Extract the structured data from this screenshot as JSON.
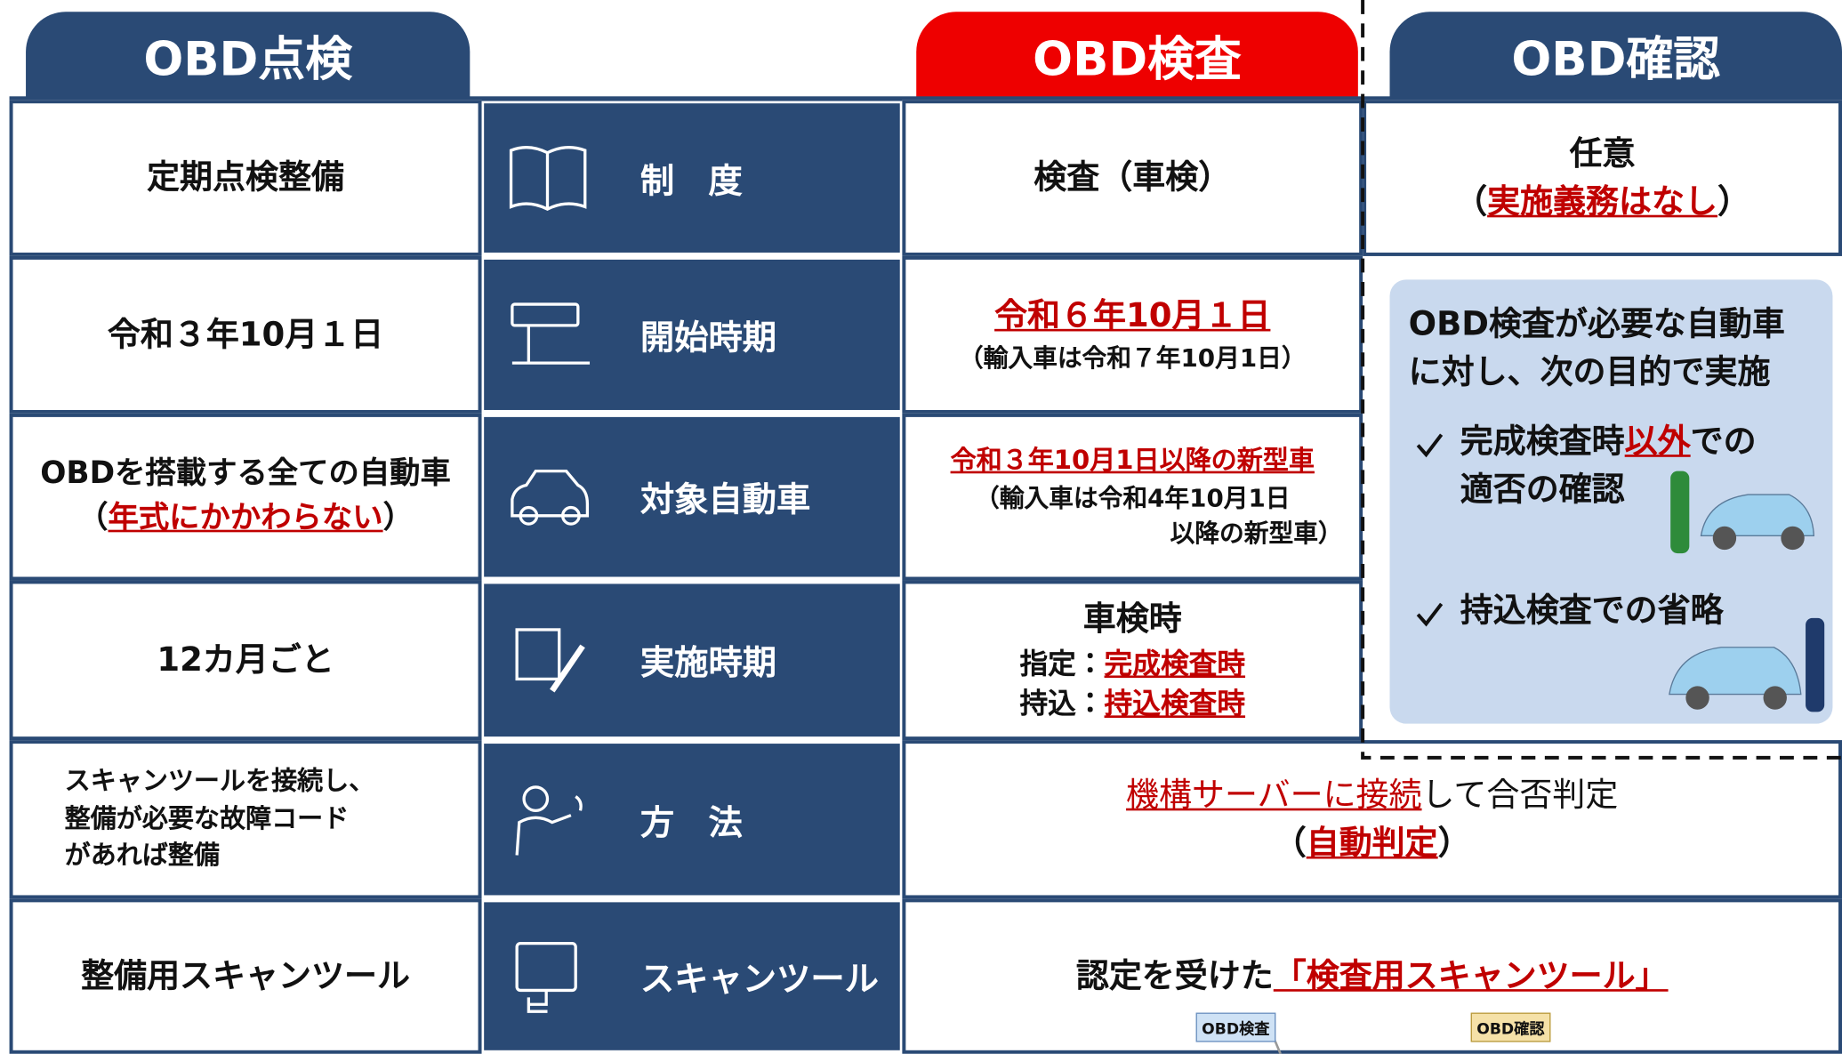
{
  "headers": {
    "tenken": "OBD点検",
    "kensa": "OBD検査",
    "kakunin": "OBD確認"
  },
  "rows": [
    {
      "label": "制　度",
      "tenken": [
        [
          {
            "text": "定期点検整備"
          }
        ]
      ],
      "kensa": [
        [
          {
            "text": "検査（車検）"
          }
        ]
      ],
      "kakunin": [
        [
          {
            "text": "任意"
          }
        ],
        [
          {
            "text": "（"
          },
          {
            "text": "実施義務はなし",
            "red": true
          },
          {
            "text": "）"
          }
        ]
      ]
    },
    {
      "label": "開始時期",
      "tenken": [
        [
          {
            "text": "令和３年10月１日"
          }
        ]
      ],
      "kensa": [
        [
          {
            "text": "令和６年10月１日",
            "red": true
          }
        ],
        [
          {
            "text": "（輸入車は令和７年10月1日）"
          }
        ]
      ]
    },
    {
      "label": "対象自動車",
      "tenken": [
        [
          {
            "text": "OBDを搭載する全ての自動車"
          }
        ],
        [
          {
            "text": "（"
          },
          {
            "text": "年式にかかわらない",
            "red": true
          },
          {
            "text": "）"
          }
        ]
      ],
      "kensa": [
        [
          {
            "text": "令和３年10月1日以降の新型車",
            "red": true
          }
        ],
        [
          {
            "text": "（輸入車は令和4年10月1日"
          }
        ],
        [
          {
            "text": "以降の新型車）"
          }
        ]
      ]
    },
    {
      "label": "実施時期",
      "tenken": [
        [
          {
            "text": "12カ月ごと"
          }
        ]
      ],
      "kensa": [
        [
          {
            "text": "車検時"
          }
        ],
        [
          {
            "text": "指定："
          },
          {
            "text": "完成検査時",
            "red": true
          }
        ],
        [
          {
            "text": "持込："
          },
          {
            "text": "持込検査時",
            "red": true
          }
        ]
      ]
    },
    {
      "label": "方　法",
      "tenken": [
        [
          {
            "text": "スキャンツールを接続し、"
          }
        ],
        [
          {
            "text": "整備が必要な故障コード"
          }
        ],
        [
          {
            "text": "があれば整備"
          }
        ]
      ],
      "kensa_kakunin": [
        [
          {
            "text": "機構サーバーに接続",
            "red": true
          },
          {
            "text": "して合否判定"
          }
        ],
        [
          {
            "text": "（"
          },
          {
            "text": "自動判定",
            "red": true
          },
          {
            "text": "）"
          }
        ]
      ]
    },
    {
      "label": "スキャンツール",
      "tenken": [
        [
          {
            "text": "整備用スキャンツール"
          }
        ]
      ],
      "kensa_kakunin": [
        [
          {
            "text": "認定を受けた"
          },
          {
            "text": "「検査用スキャンツール」",
            "red": true
          }
        ]
      ]
    }
  ],
  "kakunin_box": {
    "intro": [
      [
        {
          "text": "OBD検査が必要な自動車"
        }
      ],
      [
        {
          "text": "に対し、次の目的で実施"
        }
      ]
    ],
    "items": [
      [
        [
          {
            "text": "完成検査時"
          },
          {
            "text": "以外",
            "red": true
          },
          {
            "text": "での"
          }
        ],
        [
          {
            "text": "適否の確認"
          }
        ]
      ],
      [
        [
          {
            "text": "持込検査での省略"
          }
        ]
      ]
    ]
  },
  "bottom_tags": [
    "OBD検査",
    "OBD確認"
  ]
}
